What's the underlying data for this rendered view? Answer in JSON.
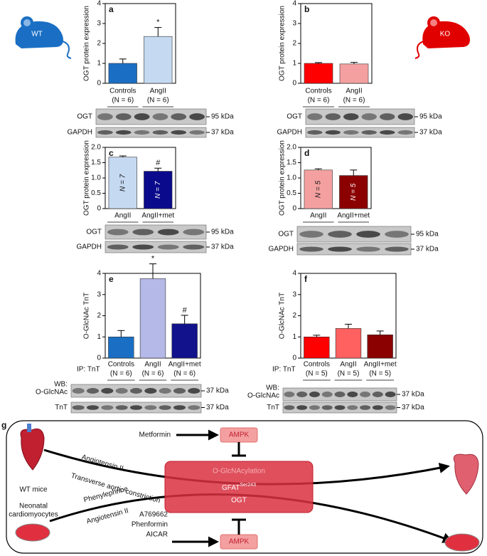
{
  "chart_data": [
    {
      "type": "bar",
      "label": "a",
      "ylabel": "OGT protein expression",
      "categories": [
        "Controls",
        "AngII"
      ],
      "n_labels": [
        "(N = 6)",
        "(N = 6)"
      ],
      "values": [
        1.0,
        2.35
      ],
      "errors": [
        0.22,
        0.45
      ],
      "colors": [
        "#1a6fc4",
        "#c5d9f1"
      ],
      "markers": [
        null,
        "*"
      ],
      "ylim": [
        0,
        4
      ],
      "yticks": [
        0,
        1,
        2,
        3,
        4
      ]
    },
    {
      "type": "bar",
      "label": "b",
      "ylabel": "OGT protein expression",
      "categories": [
        "Controls",
        "AngII"
      ],
      "n_labels": [
        "(N = 6)",
        "(N = 6)"
      ],
      "values": [
        1.0,
        0.97
      ],
      "errors": [
        0.04,
        0.08
      ],
      "colors": [
        "#ff0000",
        "#f4a0a0"
      ],
      "ylim": [
        0,
        4
      ],
      "yticks": [
        0,
        1,
        2,
        3,
        4
      ]
    },
    {
      "type": "bar",
      "label": "c",
      "ylabel": "OGT protein expression",
      "categories": [
        "AngII",
        "AngII+met"
      ],
      "bar_labels": [
        "N = 7",
        "N = 7"
      ],
      "values": [
        1.68,
        1.22
      ],
      "errors": [
        0.04,
        0.1
      ],
      "colors": [
        "#c5d9f1",
        "#0a0a8c"
      ],
      "markers": [
        null,
        "#"
      ],
      "ylim": [
        0,
        2
      ],
      "yticks": [
        0,
        0.5,
        {
          "value": 1,
          "label": "1.0"
        },
        1.5,
        {
          "value": 2,
          "label": "2.0"
        }
      ]
    },
    {
      "type": "bar",
      "label": "d",
      "ylabel": "OGT protein expression",
      "categories": [
        "AngII",
        "AngII+met"
      ],
      "bar_labels": [
        "N = 5",
        "N = 5"
      ],
      "values": [
        1.26,
        1.08
      ],
      "errors": [
        0.04,
        0.18
      ],
      "colors": [
        "#f4a0a0",
        "#8b0000"
      ],
      "ylim": [
        0,
        2
      ],
      "yticks": [
        0,
        0.5,
        {
          "value": 1,
          "label": "1.0"
        },
        1.5,
        {
          "value": 2,
          "label": "2.0"
        }
      ]
    },
    {
      "type": "bar",
      "label": "e",
      "ylabel": "O-GlcNAc  TnT",
      "ip_label": "IP: TnT",
      "categories": [
        "Controls",
        "AngII",
        "AngII+met"
      ],
      "n_labels": [
        "(N = 6)",
        "(N = 6)",
        "(N = 6)"
      ],
      "values": [
        1.0,
        3.75,
        1.62
      ],
      "errors": [
        0.3,
        0.7,
        0.4
      ],
      "colors": [
        "#1a6fc4",
        "#b5b9e8",
        "#12128c"
      ],
      "markers": [
        null,
        "*",
        "#"
      ],
      "ylim": [
        0,
        4
      ],
      "yticks": [
        0,
        1,
        2,
        3,
        4
      ]
    },
    {
      "type": "bar",
      "label": "f",
      "ylabel": "O-GlcNAc  TnT",
      "ip_label": "IP: TnT",
      "categories": [
        "Controls",
        "AngII",
        "AngII+met"
      ],
      "n_labels": [
        "(N = 5)",
        "(N = 5)",
        "(N = 5)"
      ],
      "values": [
        1.0,
        1.4,
        1.1
      ],
      "errors": [
        0.08,
        0.2,
        0.18
      ],
      "colors": [
        "#ff0000",
        "#ff6060",
        "#8b0000"
      ],
      "ylim": [
        0,
        4
      ],
      "yticks": [
        0,
        1,
        2,
        3,
        4
      ]
    }
  ],
  "icons": [
    "WT",
    "KO"
  ],
  "blots": [
    {
      "rows": [
        {
          "name": "OGT",
          "size": "95 kDa"
        },
        {
          "name": "GAPDH",
          "size": "37 kDa"
        }
      ]
    },
    {
      "rows": [
        {
          "name": "OGT",
          "size": "95 kDa"
        },
        {
          "name": "GAPDH",
          "size": "37 kDa"
        }
      ]
    },
    {
      "rows": [
        {
          "name": "OGT",
          "size": "95 kDa"
        },
        {
          "name": "GAPDH",
          "size": "37 kDa"
        }
      ]
    },
    {
      "rows": [
        {
          "name": "OGT",
          "size": "95 kDa"
        },
        {
          "name": "GAPDH",
          "size": "37 kDa"
        }
      ]
    },
    {
      "rows": [
        {
          "prefix": "WB:",
          "name": "O-GlcNAc",
          "size": "37 kDa"
        },
        {
          "name": "TnT",
          "size": "37 kDa"
        }
      ]
    },
    {
      "rows": [
        {
          "prefix": "WB:",
          "name": "O-GlcNAc",
          "size": "37 kDa"
        },
        {
          "name": "TnT",
          "size": "37 kDa"
        }
      ]
    }
  ],
  "diagram": {
    "label": "g",
    "top_drug": "Metformin",
    "ampk_top": "AMPK",
    "path1": "Angiotensin II",
    "path2": "Transverse aortic constriction",
    "source1": "WT mice",
    "source2": [
      "Neonatal",
      "cardiomyocytes"
    ],
    "path3": "Phenylephrine",
    "path4": "Angiotensin II",
    "center": "O-GlcNAcylation",
    "gfat": "GFAT",
    "gfat_sup": "Ser243",
    "ogt": "OGT",
    "bottom_drugs": [
      "A769662",
      "Phenformin",
      "AICAR"
    ],
    "ampk_bottom": "AMPK"
  }
}
